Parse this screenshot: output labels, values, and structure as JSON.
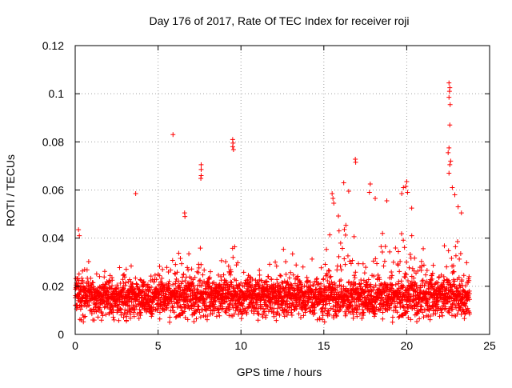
{
  "chart_data": {
    "type": "scatter",
    "title": "Day 176 of 2017, Rate Of TEC Index for receiver roji",
    "xlabel": "GPS time / hours",
    "ylabel": "ROTI / TECUs",
    "xlim": [
      0,
      25
    ],
    "ylim": [
      0,
      0.12
    ],
    "xticks": [
      0,
      5,
      10,
      15,
      20,
      25
    ],
    "xtick_labels": [
      "0",
      "5",
      "10",
      "15",
      "20",
      "25"
    ],
    "yticks": [
      0,
      0.02,
      0.04,
      0.06,
      0.08,
      0.1,
      0.12
    ],
    "ytick_labels": [
      "0",
      "0.02",
      "0.04",
      "0.06",
      "0.08",
      "0.1",
      "0.12"
    ],
    "grid": true,
    "marker": "plus",
    "color": "#ff0000",
    "series": [
      {
        "name": "ROTI",
        "generation": {
          "x_range": [
            0.0,
            23.8
          ],
          "background_points": 3200,
          "floor_min": 0.004,
          "floor_max": 0.006,
          "baseline_center": 0.015,
          "baseline_spread": 0.012,
          "burst_probability": 0.2,
          "burst_ceiling_profile": [
            [
              0.0,
              0.032
            ],
            [
              1.0,
              0.035
            ],
            [
              2.0,
              0.03
            ],
            [
              3.0,
              0.031
            ],
            [
              3.7,
              0.033
            ],
            [
              5.0,
              0.03
            ],
            [
              6.0,
              0.036
            ],
            [
              6.6,
              0.04
            ],
            [
              7.2,
              0.036
            ],
            [
              7.8,
              0.04
            ],
            [
              8.5,
              0.034
            ],
            [
              9.5,
              0.046
            ],
            [
              10.0,
              0.032
            ],
            [
              11.0,
              0.028
            ],
            [
              12.0,
              0.038
            ],
            [
              12.5,
              0.044
            ],
            [
              13.3,
              0.033
            ],
            [
              14.0,
              0.034
            ],
            [
              15.0,
              0.04
            ],
            [
              15.5,
              0.047
            ],
            [
              16.3,
              0.055
            ],
            [
              17.0,
              0.045
            ],
            [
              17.8,
              0.05
            ],
            [
              18.5,
              0.047
            ],
            [
              19.2,
              0.04
            ],
            [
              20.0,
              0.052
            ],
            [
              21.0,
              0.038
            ],
            [
              22.0,
              0.045
            ],
            [
              22.7,
              0.05
            ],
            [
              23.5,
              0.04
            ],
            [
              23.8,
              0.033
            ]
          ]
        },
        "outliers": [
          {
            "x": 3.65,
            "y": 0.0585
          },
          {
            "x": 5.9,
            "y": 0.083
          },
          {
            "x": 7.6,
            "y": 0.0705
          },
          {
            "x": 7.6,
            "y": 0.0685
          },
          {
            "x": 7.6,
            "y": 0.066
          },
          {
            "x": 7.58,
            "y": 0.0648
          },
          {
            "x": 9.5,
            "y": 0.081
          },
          {
            "x": 9.52,
            "y": 0.0795
          },
          {
            "x": 9.5,
            "y": 0.078
          },
          {
            "x": 9.55,
            "y": 0.0768
          },
          {
            "x": 6.6,
            "y": 0.0505
          },
          {
            "x": 6.62,
            "y": 0.049
          },
          {
            "x": 15.5,
            "y": 0.0585
          },
          {
            "x": 15.55,
            "y": 0.0565
          },
          {
            "x": 15.6,
            "y": 0.0545
          },
          {
            "x": 16.2,
            "y": 0.063
          },
          {
            "x": 16.5,
            "y": 0.0595
          },
          {
            "x": 16.9,
            "y": 0.0728
          },
          {
            "x": 16.92,
            "y": 0.0715
          },
          {
            "x": 17.8,
            "y": 0.0625
          },
          {
            "x": 17.75,
            "y": 0.059
          },
          {
            "x": 18.1,
            "y": 0.0565
          },
          {
            "x": 18.8,
            "y": 0.0555
          },
          {
            "x": 19.7,
            "y": 0.0585
          },
          {
            "x": 19.8,
            "y": 0.061
          },
          {
            "x": 20.0,
            "y": 0.0635
          },
          {
            "x": 19.95,
            "y": 0.0615
          },
          {
            "x": 20.05,
            "y": 0.059
          },
          {
            "x": 20.3,
            "y": 0.0525
          },
          {
            "x": 22.55,
            "y": 0.1045
          },
          {
            "x": 22.6,
            "y": 0.1025
          },
          {
            "x": 22.58,
            "y": 0.101
          },
          {
            "x": 22.55,
            "y": 0.0985
          },
          {
            "x": 22.62,
            "y": 0.0955
          },
          {
            "x": 22.6,
            "y": 0.087
          },
          {
            "x": 22.55,
            "y": 0.0775
          },
          {
            "x": 22.5,
            "y": 0.0755
          },
          {
            "x": 22.65,
            "y": 0.072
          },
          {
            "x": 22.6,
            "y": 0.0705
          },
          {
            "x": 22.55,
            "y": 0.067
          },
          {
            "x": 22.75,
            "y": 0.061
          },
          {
            "x": 22.9,
            "y": 0.058
          },
          {
            "x": 23.1,
            "y": 0.053
          },
          {
            "x": 23.3,
            "y": 0.0505
          },
          {
            "x": 0.2,
            "y": 0.0435
          },
          {
            "x": 0.25,
            "y": 0.041
          }
        ]
      }
    ]
  }
}
